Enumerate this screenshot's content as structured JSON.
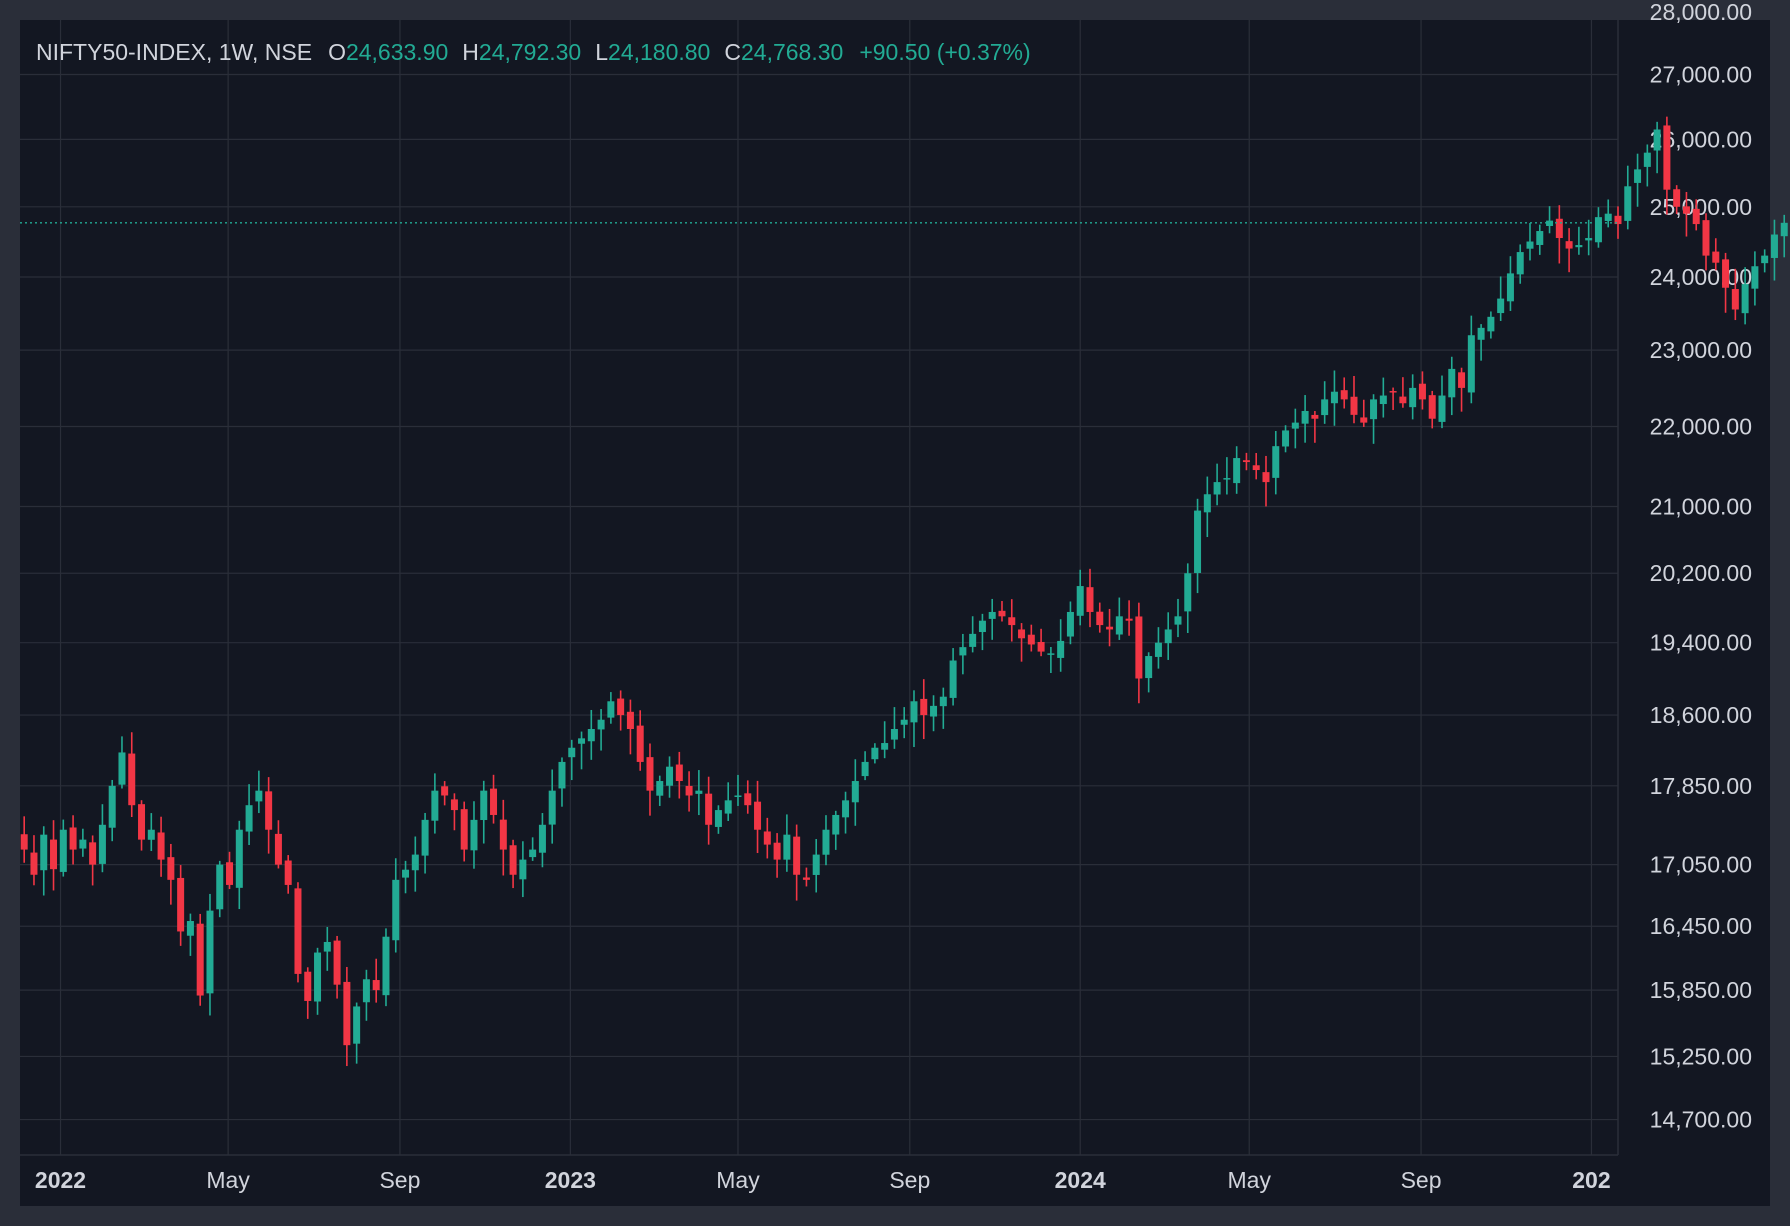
{
  "header": {
    "symbol": "NIFTY50-INDEX, 1W, NSE",
    "open_label": "O",
    "open": "24,633.90",
    "high_label": "H",
    "high": "24,792.30",
    "low_label": "L",
    "low": "24,180.80",
    "close_label": "C",
    "close": "24,768.30",
    "change": "+90.50 (+0.37%)"
  },
  "colors": {
    "background": "#131722",
    "frame": "#2a2e39",
    "grid": "#2a2e39",
    "text": "#d1d4dc",
    "up": "#22ab94",
    "down": "#f23645",
    "last_price_line": "#22ab94"
  },
  "chart_data": {
    "type": "candlestick",
    "interval": "1W",
    "y_scale": "log",
    "ylim": [
      14400,
      28000
    ],
    "y_ticks": [
      "28,000.00",
      "27,000.00",
      "26,000.00",
      "25,000.00",
      "24,000.00",
      "23,000.00",
      "22,000.00",
      "21,000.00",
      "20,200.00",
      "19,400.00",
      "18,600.00",
      "17,850.00",
      "17,050.00",
      "16,450.00",
      "15,850.00",
      "15,250.00",
      "14,700.00"
    ],
    "y_tick_values": [
      28000,
      27000,
      26000,
      25000,
      24000,
      23000,
      22000,
      21000,
      20200,
      19400,
      18600,
      17850,
      17050,
      16450,
      15850,
      15250,
      14700
    ],
    "x_ticks": [
      {
        "label": "2022",
        "date": "2022-01-01",
        "bold": true
      },
      {
        "label": "May",
        "date": "2022-05-01",
        "bold": false
      },
      {
        "label": "Sep",
        "date": "2022-09-01",
        "bold": false
      },
      {
        "label": "2023",
        "date": "2023-01-01",
        "bold": true
      },
      {
        "label": "May",
        "date": "2023-05-01",
        "bold": false
      },
      {
        "label": "Sep",
        "date": "2023-09-01",
        "bold": false
      },
      {
        "label": "2024",
        "date": "2024-01-01",
        "bold": true
      },
      {
        "label": "May",
        "date": "2024-05-01",
        "bold": false
      },
      {
        "label": "Sep",
        "date": "2024-09-01",
        "bold": false
      },
      {
        "label": "202",
        "date": "2025-01-01",
        "bold": true
      }
    ],
    "x_range": [
      "2021-12-03",
      "2025-01-20"
    ],
    "first_week": "2021-12-06",
    "last_price": 24768.3,
    "grid": true,
    "closes": [
      17200,
      16950,
      17350,
      17005,
      17400,
      17200,
      17300,
      17050,
      17450,
      17850,
      18200,
      17650,
      17300,
      17400,
      17100,
      16900,
      16400,
      16500,
      15800,
      16600,
      17050,
      16850,
      17400,
      17650,
      17800,
      17400,
      17050,
      16850,
      16000,
      15750,
      16200,
      16300,
      15900,
      15350,
      15700,
      15950,
      15850,
      16350,
      16900,
      17000,
      17150,
      17500,
      17800,
      17750,
      17600,
      17200,
      17500,
      17800,
      17550,
      17200,
      16950,
      17100,
      17200,
      17450,
      17800,
      18100,
      18250,
      18350,
      18450,
      18550,
      18750,
      18600,
      18450,
      18100,
      17800,
      17900,
      18050,
      17900,
      17750,
      17800,
      17450,
      17600,
      17700,
      17750,
      17650,
      17400,
      17250,
      17100,
      17350,
      16950,
      16900,
      17150,
      17400,
      17550,
      17700,
      17900,
      18100,
      18250,
      18300,
      18450,
      18550,
      18750,
      18600,
      18700,
      18800,
      19200,
      19350,
      19500,
      19650,
      19750,
      19700,
      19600,
      19450,
      19380,
      19300,
      19280,
      19420,
      19750,
      20050,
      19750,
      19600,
      19550,
      19700,
      19650,
      19000,
      19250,
      19400,
      19550,
      19700,
      20200,
      20950,
      21150,
      21300,
      21350,
      21600,
      21550,
      21450,
      21300,
      21750,
      21950,
      22050,
      22200,
      22100,
      22350,
      22450,
      22350,
      22150,
      22050,
      22350,
      22400,
      22450,
      22300,
      22500,
      22350,
      22100,
      22400,
      22750,
      22500,
      23200,
      23300,
      23450,
      23700,
      24050,
      24350,
      24500,
      24650,
      24800,
      24550,
      24400,
      24450,
      24550,
      24850,
      24900,
      24750,
      25300,
      25550,
      25800,
      26150,
      25250,
      25000,
      24900,
      24750,
      24300,
      24200,
      23850,
      23550,
      23900,
      24150,
      24300,
      24600,
      24768.3
    ]
  }
}
